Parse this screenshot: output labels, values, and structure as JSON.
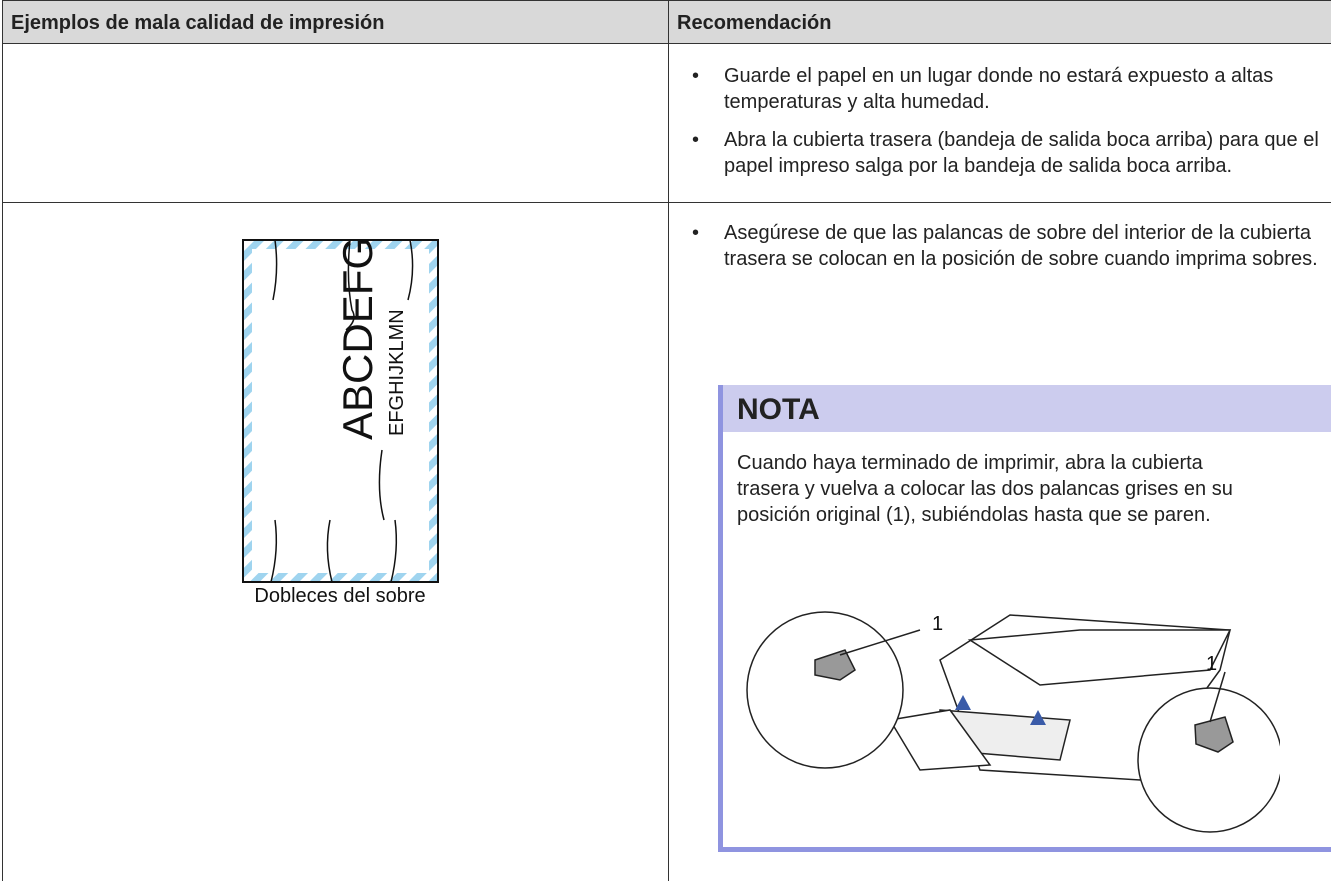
{
  "table": {
    "headers": [
      "Ejemplos de mala calidad de impresión",
      "Recomendación"
    ],
    "rows": [
      {
        "recommendations": [
          "Guarde el papel en un lugar donde no estará expuesto a altas temperaturas y alta humedad.",
          "Abra la cubierta trasera (bandeja de salida boca arriba) para que el papel impreso salga por la bandeja de salida boca arriba."
        ]
      },
      {
        "illustration": {
          "large_text": "ABCDEFG",
          "small_text": "EFGHIJKLMN",
          "caption": "Dobleces del sobre"
        },
        "recommendations": [
          "Asegúrese de que las palancas de sobre del interior de la cubierta trasera se colocan en la posición de sobre cuando imprima sobres."
        ],
        "note": {
          "title": "NOTA",
          "text": "Cuando haya terminado de imprimir, abra la cubierta trasera y vuelva a colocar las dos palancas grises en su posición original (1), subiéndolas hasta que se paren.",
          "callouts": [
            "1",
            "1"
          ]
        }
      }
    ]
  }
}
